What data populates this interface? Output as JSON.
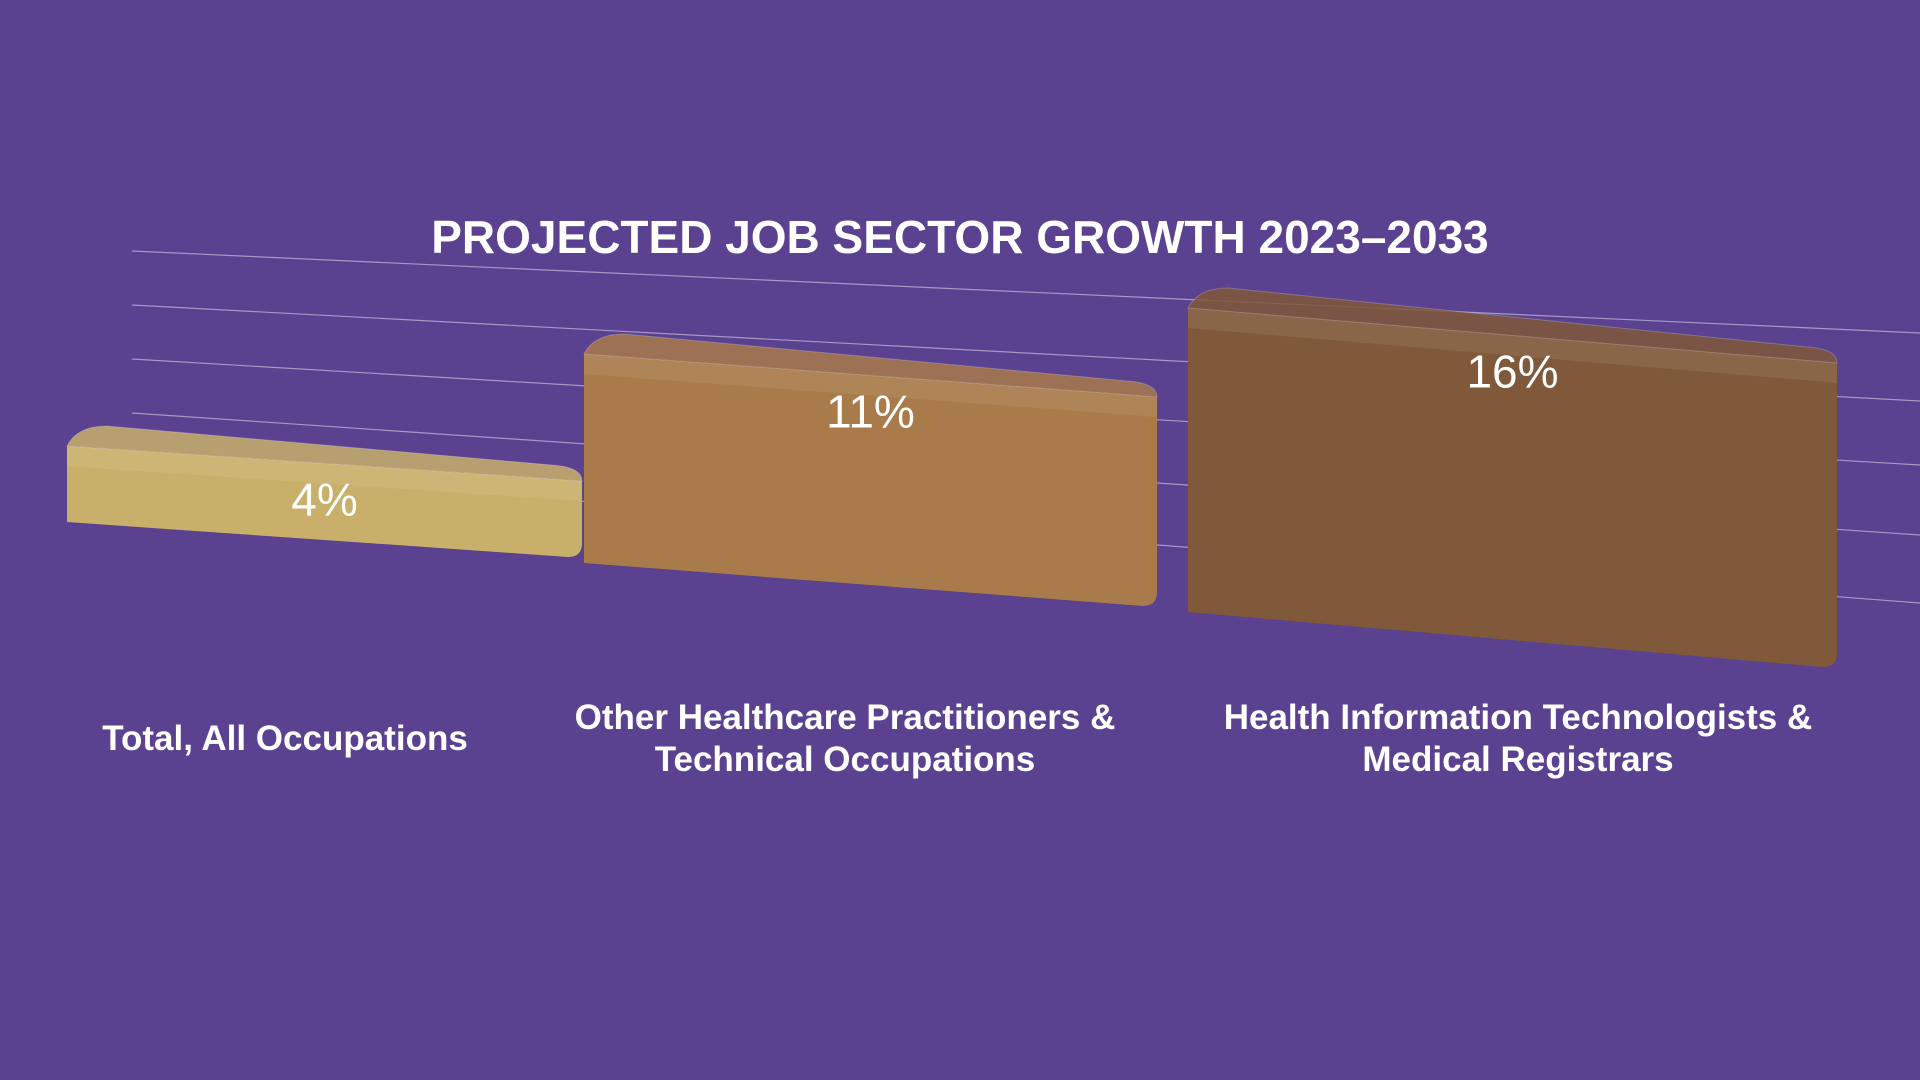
{
  "chart_data": {
    "type": "bar3d",
    "title": "PROJECTED JOB SECTOR GROWTH 2023–2033",
    "categories": [
      "Total, All Occupations",
      "Other Healthcare Practitioners & Technical Occupations",
      "Health Information Technologists & Medical Registrars"
    ],
    "values": [
      4,
      11,
      16
    ],
    "value_labels": [
      "4%",
      "11%",
      "16%"
    ],
    "colors": [
      "#c9b06a",
      "#a97b4a",
      "#80593a"
    ],
    "grid": true
  }
}
